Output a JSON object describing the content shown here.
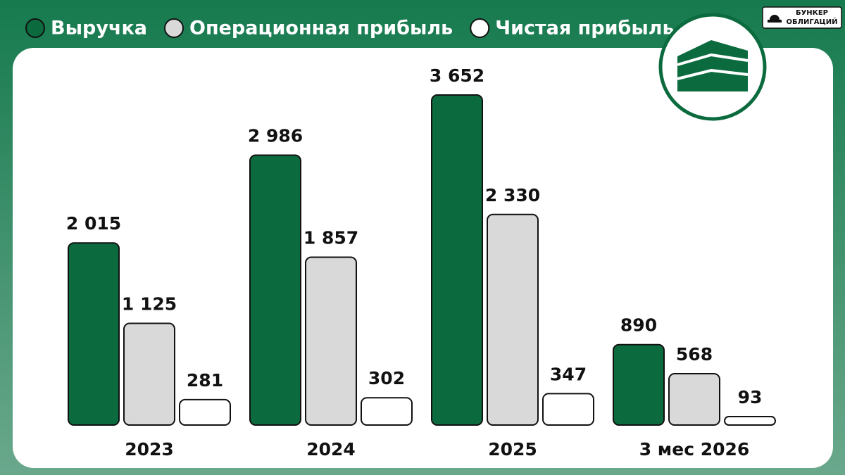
{
  "brand": [
    "БУНКЕР",
    "ОБЛИГАЦИЙ"
  ],
  "chart_data": {
    "type": "bar",
    "categories": [
      "2023",
      "2024",
      "2025",
      "3 мес 2026"
    ],
    "series": [
      {
        "name": "Выручка",
        "color": "#0b6b3e",
        "values": [
          2015,
          2986,
          3652,
          890
        ],
        "value_labels": [
          "2 015",
          "2 986",
          "3 652",
          "890"
        ]
      },
      {
        "name": "Операционная прибыль",
        "color": "#d9d9d9",
        "values": [
          1125,
          1857,
          2330,
          568
        ],
        "value_labels": [
          "1 125",
          "1 857",
          "2 330",
          "568"
        ]
      },
      {
        "name": "Чистая прибыль",
        "color": "#ffffff",
        "values": [
          281,
          302,
          347,
          93
        ],
        "value_labels": [
          "281",
          "302",
          "347",
          "93"
        ]
      }
    ]
  }
}
